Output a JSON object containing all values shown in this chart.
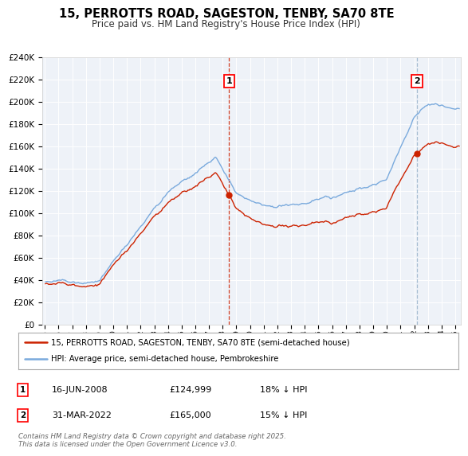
{
  "title": "15, PERROTTS ROAD, SAGESTON, TENBY, SA70 8TE",
  "subtitle": "Price paid vs. HM Land Registry's House Price Index (HPI)",
  "background_color": "#ffffff",
  "plot_bg": "#eef2f8",
  "hpi_color": "#7aaadd",
  "sale_color": "#cc2200",
  "sale1_vline_color": "#cc2200",
  "sale2_vline_color": "#9ab4cc",
  "ylim_max": 240000,
  "ylim_min": 0,
  "sale1_date_num": 2008.458,
  "sale1_price": 124999,
  "sale2_date_num": 2022.208,
  "sale2_price": 165000,
  "legend_line1": "15, PERROTTS ROAD, SAGESTON, TENBY, SA70 8TE (semi-detached house)",
  "legend_line2": "HPI: Average price, semi-detached house, Pembrokeshire",
  "ann1_date": "16-JUN-2008",
  "ann1_price": "£124,999",
  "ann1_pct": "18% ↓ HPI",
  "ann2_date": "31-MAR-2022",
  "ann2_price": "£165,000",
  "ann2_pct": "15% ↓ HPI",
  "footer": "Contains HM Land Registry data © Crown copyright and database right 2025.\nThis data is licensed under the Open Government Licence v3.0."
}
